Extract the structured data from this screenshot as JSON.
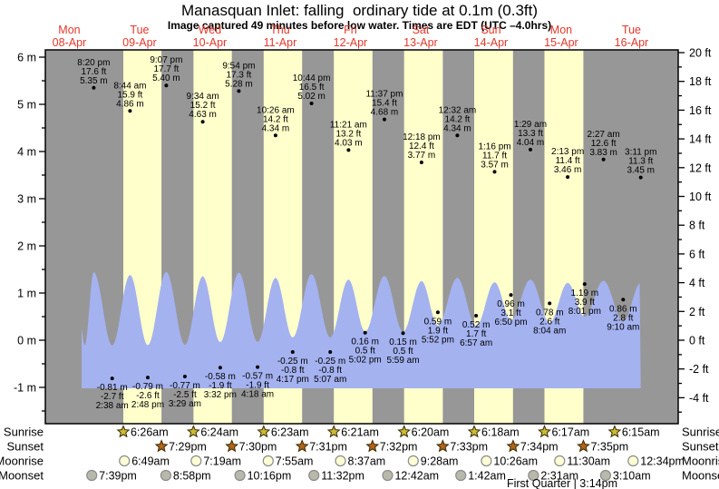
{
  "header": {
    "station": "Manasquan Inlet"
  },
  "chart_data": {
    "type": "area",
    "title": "Manasquan Inlet: falling  ordinary tide at 0.1m (0.3ft)",
    "subtitle": "Image captured 49 minutes before low water. Times are EDT (UTC –4.0hrs)",
    "days": [
      {
        "dow": "Mon",
        "date": "08-Apr"
      },
      {
        "dow": "Tue",
        "date": "09-Apr"
      },
      {
        "dow": "Wed",
        "date": "10-Apr"
      },
      {
        "dow": "Thu",
        "date": "11-Apr"
      },
      {
        "dow": "Fri",
        "date": "12-Apr"
      },
      {
        "dow": "Sat",
        "date": "13-Apr"
      },
      {
        "dow": "Sun",
        "date": "14-Apr"
      },
      {
        "dow": "Mon",
        "date": "15-Apr"
      },
      {
        "dow": "Tue",
        "date": "16-Apr"
      }
    ],
    "y_axis_left": {
      "unit": "m",
      "ticks": [
        {
          "v": 6,
          "label": "6 m"
        },
        {
          "v": 5,
          "label": "5 m"
        },
        {
          "v": 4,
          "label": "4 m"
        },
        {
          "v": 3,
          "label": "3 m"
        },
        {
          "v": 2,
          "label": "2 m"
        },
        {
          "v": 1,
          "label": "1 m"
        },
        {
          "v": 0,
          "label": "0 m"
        },
        {
          "v": -1,
          "label": "-1 m"
        }
      ]
    },
    "y_axis_right": {
      "unit": "ft",
      "ticks": [
        {
          "v": 20,
          "label": "20 ft"
        },
        {
          "v": 18,
          "label": "18 ft"
        },
        {
          "v": 16,
          "label": "16 ft"
        },
        {
          "v": 14,
          "label": "14 ft"
        },
        {
          "v": 12,
          "label": "12 ft"
        },
        {
          "v": 10,
          "label": "10 ft"
        },
        {
          "v": 8,
          "label": "8 ft"
        },
        {
          "v": 6,
          "label": "6 ft"
        },
        {
          "v": 4,
          "label": "4 ft"
        },
        {
          "v": 2,
          "label": "2 ft"
        },
        {
          "v": 0,
          "label": "0 ft"
        },
        {
          "v": -2,
          "label": "-2 ft"
        },
        {
          "v": -4,
          "label": "-4 ft"
        }
      ]
    },
    "high_tides": [
      {
        "d": 0,
        "time": "8:20 pm",
        "ft": "17.6 ft",
        "m": "5.35 m"
      },
      {
        "d": 1,
        "time": "8:44 am",
        "ft": "15.9 ft",
        "m": "4.86 m"
      },
      {
        "d": 1,
        "time": "9:07 pm",
        "ft": "17.7 ft",
        "m": "5.40 m"
      },
      {
        "d": 2,
        "time": "9:34 am",
        "ft": "15.2 ft",
        "m": "4.63 m"
      },
      {
        "d": 2,
        "time": "9:54 pm",
        "ft": "17.3 ft",
        "m": "5.28 m"
      },
      {
        "d": 3,
        "time": "10:26 am",
        "ft": "14.2 ft",
        "m": "4.34 m"
      },
      {
        "d": 3,
        "time": "10:44 pm",
        "ft": "16.5 ft",
        "m": "5.02 m"
      },
      {
        "d": 4,
        "time": "11:21 am",
        "ft": "13.2 ft",
        "m": "4.03 m"
      },
      {
        "d": 4,
        "time": "11:37 pm",
        "ft": "15.4 ft",
        "m": "4.68 m"
      },
      {
        "d": 5,
        "time": "12:18 pm",
        "ft": "12.4 ft",
        "m": "3.77 m"
      },
      {
        "d": 6,
        "time": "12:32 am",
        "ft": "14.2 ft",
        "m": "4.34 m"
      },
      {
        "d": 6,
        "time": "1:16 pm",
        "ft": "11.7 ft",
        "m": "3.57 m"
      },
      {
        "d": 7,
        "time": "1:29 am",
        "ft": "13.3 ft",
        "m": "4.04 m"
      },
      {
        "d": 7,
        "time": "2:13 pm",
        "ft": "11.4 ft",
        "m": "3.46 m"
      },
      {
        "d": 8,
        "time": "2:27 am",
        "ft": "12.6 ft",
        "m": "3.83 m"
      },
      {
        "d": 8,
        "time": "3:11 pm",
        "ft": "11.3 ft",
        "m": "3.45 m"
      }
    ],
    "low_tides": [
      {
        "d": 1,
        "m": "-0.81 m",
        "ft": "-2.7 ft",
        "time": "2:38 am"
      },
      {
        "d": 1,
        "m": "-0.79 m",
        "ft": "-2.6 ft",
        "time": "2:48 pm"
      },
      {
        "d": 2,
        "m": "-0.77 m",
        "ft": "-2.5 ft",
        "time": "3:29 am"
      },
      {
        "d": 2,
        "m": "-0.58 m",
        "ft": "-1.9 ft",
        "time": "3:32 pm"
      },
      {
        "d": 3,
        "m": "-0.57 m",
        "ft": "-1.9 ft",
        "time": "4:18 am"
      },
      {
        "d": 3,
        "m": "-0.25 m",
        "ft": "-0.8 ft",
        "time": "4:17 pm"
      },
      {
        "d": 4,
        "m": "-0.25 m",
        "ft": "-0.8 ft",
        "time": "5:07 am"
      },
      {
        "d": 4,
        "m": "0.16 m",
        "ft": "0.5 ft",
        "time": "5:02 pm"
      },
      {
        "d": 5,
        "m": "0.15 m",
        "ft": "0.5 ft",
        "time": "5:59 am"
      },
      {
        "d": 5,
        "m": "0.59 m",
        "ft": "1.9 ft",
        "time": "5:52 pm"
      },
      {
        "d": 6,
        "m": "0.52 m",
        "ft": "1.7 ft",
        "time": "6:57 am"
      },
      {
        "d": 6,
        "m": "0.96 m",
        "ft": "3.1 ft",
        "time": "6:50 pm"
      },
      {
        "d": 7,
        "m": "0.78 m",
        "ft": "2.6 ft",
        "time": "8:04 am"
      },
      {
        "d": 7,
        "m": "1.19 m",
        "ft": "3.9 ft",
        "time": "8:01 pm"
      },
      {
        "d": 8,
        "m": "0.86 m",
        "ft": "2.8 ft",
        "time": "9:10 am"
      }
    ]
  },
  "astro": {
    "rows": [
      {
        "key": "sunrise",
        "label": "Sunrise",
        "icon": "sun",
        "items": [
          {
            "d": 1,
            "t": "6:26am"
          },
          {
            "d": 2,
            "t": "6:24am"
          },
          {
            "d": 3,
            "t": "6:23am"
          },
          {
            "d": 4,
            "t": "6:21am"
          },
          {
            "d": 5,
            "t": "6:20am"
          },
          {
            "d": 6,
            "t": "6:18am"
          },
          {
            "d": 7,
            "t": "6:17am"
          },
          {
            "d": 8,
            "t": "6:15am"
          }
        ]
      },
      {
        "key": "sunset",
        "label": "Sunset",
        "icon": "sun",
        "items": [
          {
            "d": 1,
            "t": "7:29pm"
          },
          {
            "d": 2,
            "t": "7:30pm"
          },
          {
            "d": 3,
            "t": "7:31pm"
          },
          {
            "d": 4,
            "t": "7:32pm"
          },
          {
            "d": 5,
            "t": "7:33pm"
          },
          {
            "d": 6,
            "t": "7:34pm"
          },
          {
            "d": 7,
            "t": "7:35pm"
          }
        ]
      },
      {
        "key": "moonrise",
        "label": "Moonrise",
        "icon": "moon",
        "items": [
          {
            "d": 1,
            "t": "6:49am"
          },
          {
            "d": 2,
            "t": "7:19am"
          },
          {
            "d": 3,
            "t": "7:55am"
          },
          {
            "d": 4,
            "t": "8:37am"
          },
          {
            "d": 5,
            "t": "9:28am"
          },
          {
            "d": 6,
            "t": "10:26am"
          },
          {
            "d": 7,
            "t": "11:30am"
          },
          {
            "d": 8,
            "t": "12:34pm"
          }
        ]
      },
      {
        "key": "moonset",
        "label": "Moonset",
        "icon": "moon",
        "items": [
          {
            "d": 0,
            "t": "7:39pm"
          },
          {
            "d": 1,
            "t": "8:58pm"
          },
          {
            "d": 2,
            "t": "10:16pm"
          },
          {
            "d": 3,
            "t": "11:32pm"
          },
          {
            "d": 5,
            "t": "12:42am"
          },
          {
            "d": 6,
            "t": "1:42am"
          },
          {
            "d": 7,
            "t": "2:31am"
          },
          {
            "d": 8,
            "t": "3:10am"
          }
        ]
      }
    ],
    "moon_phase": "First Quarter | 3:14pm"
  },
  "colors": {
    "daylight": "#ffffcc",
    "night": "#979797",
    "tide_area": "#a4b2f0",
    "header_red": "#e5372b",
    "sunrise_star": "#ccbc34",
    "sunset_star": "#b26418",
    "moonrise_circle": "#ffffd6",
    "moonset_circle": "#b9b9ab",
    "text": "#000000"
  }
}
